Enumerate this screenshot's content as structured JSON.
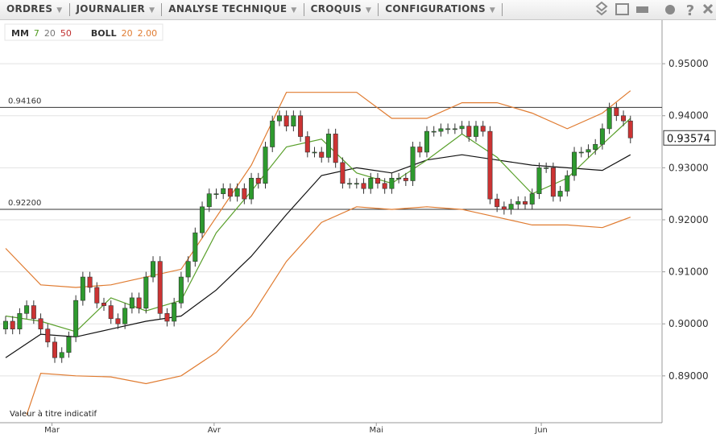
{
  "toolbar": {
    "menus": [
      "ORDRES",
      "JOURNALIER",
      "ANALYSE TECHNIQUE",
      "CROQUIS",
      "CONFIGURATIONS"
    ]
  },
  "chart_data": {
    "type": "candlestick",
    "indicators": [
      {
        "label": "MM",
        "params": [
          7,
          20,
          50
        ],
        "colors": [
          "#4f9a1f",
          "#777777",
          "#c03030"
        ]
      },
      {
        "label": "BOLL",
        "params": [
          20,
          "2.00"
        ],
        "colors": [
          "#e07b30",
          "#e07b30"
        ]
      }
    ],
    "note": "Valeur à titre indicatif",
    "up_color": "#2e9a2e",
    "down_color": "#cc3333",
    "open": [
      0.899,
      0.9005,
      0.899,
      0.902,
      0.9035,
      0.901,
      0.899,
      0.8965,
      0.8935,
      0.8945,
      0.8975,
      0.9045,
      0.909,
      0.907,
      0.904,
      0.9035,
      0.901,
      0.9,
      0.903,
      0.905,
      0.903,
      0.909,
      0.912,
      0.902,
      0.9005,
      0.904,
      0.909,
      0.912,
      0.9175,
      0.9225,
      0.925,
      0.925,
      0.926,
      0.9245,
      0.926,
      0.924,
      0.928,
      0.927,
      0.934,
      0.939,
      0.94,
      0.938,
      0.94,
      0.936,
      0.933,
      0.933,
      0.932,
      0.9365,
      0.931,
      0.927,
      0.927,
      0.927,
      0.926,
      0.928,
      0.927,
      0.926,
      0.928,
      0.928,
      0.9275,
      0.934,
      0.933,
      0.937,
      0.937,
      0.9375,
      0.9375,
      0.9375,
      0.938,
      0.936,
      0.938,
      0.937,
      0.924,
      0.9225,
      0.922,
      0.923,
      0.9235,
      0.923,
      0.925,
      0.93,
      0.93,
      0.9245,
      0.9255,
      0.9285,
      0.933,
      0.933,
      0.9335,
      0.9345,
      0.9375,
      0.9415,
      0.94,
      0.939
    ],
    "high": [
      0.9015,
      0.9015,
      0.903,
      0.9045,
      0.9045,
      0.902,
      0.9,
      0.8975,
      0.8955,
      0.8985,
      0.9055,
      0.91,
      0.91,
      0.908,
      0.905,
      0.9045,
      0.902,
      0.904,
      0.906,
      0.906,
      0.91,
      0.913,
      0.913,
      0.903,
      0.905,
      0.91,
      0.913,
      0.9185,
      0.9235,
      0.926,
      0.926,
      0.927,
      0.927,
      0.927,
      0.927,
      0.929,
      0.929,
      0.935,
      0.94,
      0.941,
      0.941,
      0.941,
      0.941,
      0.937,
      0.934,
      0.934,
      0.9375,
      0.9375,
      0.932,
      0.928,
      0.928,
      0.928,
      0.929,
      0.929,
      0.928,
      0.929,
      0.929,
      0.929,
      0.935,
      0.935,
      0.938,
      0.938,
      0.9385,
      0.9385,
      0.9385,
      0.939,
      0.939,
      0.939,
      0.939,
      0.938,
      0.925,
      0.9235,
      0.924,
      0.9245,
      0.9245,
      0.926,
      0.931,
      0.931,
      0.931,
      0.9265,
      0.9295,
      0.934,
      0.934,
      0.9345,
      0.9355,
      0.9385,
      0.9425,
      0.9425,
      0.941,
      0.94
    ],
    "low": [
      0.898,
      0.898,
      0.898,
      0.901,
      0.9,
      0.898,
      0.8955,
      0.8925,
      0.8925,
      0.8935,
      0.8965,
      0.9035,
      0.906,
      0.903,
      0.9025,
      0.9,
      0.899,
      0.899,
      0.902,
      0.902,
      0.902,
      0.908,
      0.901,
      0.8995,
      0.8995,
      0.903,
      0.908,
      0.911,
      0.9165,
      0.9215,
      0.924,
      0.924,
      0.9235,
      0.9235,
      0.923,
      0.923,
      0.926,
      0.926,
      0.933,
      0.938,
      0.937,
      0.937,
      0.935,
      0.932,
      0.932,
      0.931,
      0.931,
      0.93,
      0.926,
      0.926,
      0.926,
      0.925,
      0.925,
      0.926,
      0.925,
      0.925,
      0.927,
      0.9265,
      0.9265,
      0.932,
      0.932,
      0.936,
      0.936,
      0.9365,
      0.9365,
      0.9365,
      0.935,
      0.935,
      0.936,
      0.923,
      0.9215,
      0.921,
      0.921,
      0.922,
      0.922,
      0.922,
      0.924,
      0.929,
      0.9235,
      0.9235,
      0.9245,
      0.9275,
      0.932,
      0.932,
      0.9325,
      0.9335,
      0.9365,
      0.939,
      0.938,
      0.9347
    ],
    "close": [
      0.9005,
      0.899,
      0.902,
      0.9035,
      0.901,
      0.899,
      0.8965,
      0.8935,
      0.8945,
      0.8975,
      0.9045,
      0.909,
      0.907,
      0.904,
      0.9035,
      0.901,
      0.9,
      0.903,
      0.905,
      0.903,
      0.909,
      0.912,
      0.902,
      0.9005,
      0.904,
      0.909,
      0.912,
      0.9175,
      0.9225,
      0.925,
      0.925,
      0.926,
      0.9245,
      0.926,
      0.924,
      0.928,
      0.927,
      0.934,
      0.939,
      0.94,
      0.938,
      0.94,
      0.936,
      0.933,
      0.933,
      0.932,
      0.9365,
      0.931,
      0.927,
      0.927,
      0.927,
      0.926,
      0.928,
      0.927,
      0.926,
      0.928,
      0.928,
      0.9275,
      0.934,
      0.933,
      0.937,
      0.937,
      0.9375,
      0.9375,
      0.9375,
      0.938,
      0.936,
      0.938,
      0.937,
      0.924,
      0.9225,
      0.922,
      0.923,
      0.9235,
      0.923,
      0.925,
      0.93,
      0.93,
      0.9245,
      0.9255,
      0.9285,
      0.933,
      0.933,
      0.9335,
      0.9345,
      0.9375,
      0.9415,
      0.94,
      0.939,
      0.93574
    ],
    "lines": [
      {
        "color": "#e07b30",
        "x": [
          0,
          5,
          10,
          15,
          20,
          25,
          30,
          35,
          40,
          45,
          50,
          55,
          60,
          65,
          70,
          75,
          80,
          85,
          89
        ],
        "values": [
          0.9145,
          0.9075,
          0.907,
          0.9075,
          0.909,
          0.9105,
          0.9205,
          0.9305,
          0.9445,
          0.9445,
          0.9445,
          0.9395,
          0.9395,
          0.9425,
          0.9425,
          0.9405,
          0.9375,
          0.9405,
          0.9448
        ]
      },
      {
        "color": "#e07b30",
        "x": [
          3,
          5,
          10,
          15,
          20,
          25,
          30,
          35,
          40,
          45,
          50,
          55,
          60,
          65,
          70,
          75,
          80,
          85,
          89
        ],
        "values": [
          0.8825,
          0.8905,
          0.89,
          0.8898,
          0.8885,
          0.89,
          0.8945,
          0.9015,
          0.912,
          0.9195,
          0.9225,
          0.922,
          0.9225,
          0.922,
          0.9205,
          0.919,
          0.919,
          0.9185,
          0.9205
        ]
      },
      {
        "color": "#111111",
        "x": [
          0,
          5,
          10,
          15,
          20,
          25,
          30,
          35,
          40,
          45,
          50,
          55,
          60,
          65,
          70,
          75,
          80,
          85,
          89
        ],
        "values": [
          0.8935,
          0.898,
          0.8975,
          0.899,
          0.9005,
          0.9015,
          0.9065,
          0.913,
          0.921,
          0.9285,
          0.93,
          0.929,
          0.9315,
          0.9325,
          0.9315,
          0.9305,
          0.93,
          0.9295,
          0.9325
        ]
      },
      {
        "color": "#5aa02c",
        "x": [
          0,
          5,
          10,
          15,
          20,
          25,
          30,
          35,
          40,
          45,
          50,
          55,
          60,
          65,
          70,
          75,
          80,
          85,
          89
        ],
        "values": [
          0.9015,
          0.9005,
          0.8985,
          0.905,
          0.9025,
          0.9045,
          0.9175,
          0.9255,
          0.934,
          0.9355,
          0.929,
          0.927,
          0.9315,
          0.9365,
          0.932,
          0.925,
          0.928,
          0.9345,
          0.9395
        ]
      }
    ],
    "hlines": [
      {
        "value": 0.9416,
        "label": "0.94160"
      },
      {
        "value": 0.922,
        "label": "0.92200"
      }
    ],
    "last_price": {
      "value": 0.93574,
      "label": "0.93574"
    },
    "xlim": [
      -0.8,
      93.5
    ],
    "xticks": [
      {
        "value": 6.6,
        "label": "Mar"
      },
      {
        "value": 29.7,
        "label": "Avr"
      },
      {
        "value": 52.8,
        "label": "Mai"
      },
      {
        "value": 76.3,
        "label": "Jun"
      }
    ],
    "ylim": [
      0.881,
      0.9576
    ],
    "yticks": [
      {
        "value": 0.89,
        "label": "0.89000"
      },
      {
        "value": 0.9,
        "label": "0.90000"
      },
      {
        "value": 0.91,
        "label": "0.91000"
      },
      {
        "value": 0.92,
        "label": "0.92000"
      },
      {
        "value": 0.93,
        "label": "0.93000"
      },
      {
        "value": 0.94,
        "label": "0.94000"
      },
      {
        "value": 0.95,
        "label": "0.95000"
      }
    ],
    "grid": true
  }
}
